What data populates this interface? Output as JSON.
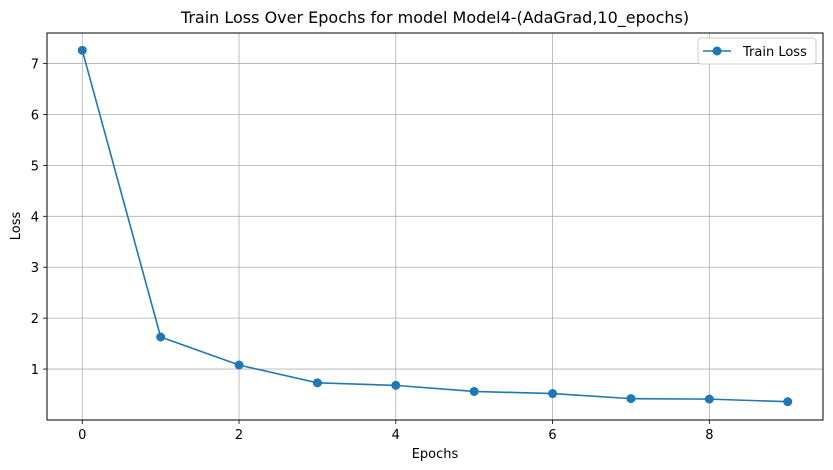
{
  "chart_data": {
    "type": "line",
    "title": "Train Loss Over Epochs for model Model4-(AdaGrad,10_epochs)",
    "xlabel": "Epochs",
    "ylabel": "Loss",
    "xlim": [
      -0.45,
      9.45
    ],
    "ylim": [
      0.0,
      7.6
    ],
    "xticks": [
      0,
      2,
      4,
      6,
      8
    ],
    "yticks": [
      1,
      2,
      3,
      4,
      5,
      6,
      7
    ],
    "grid": true,
    "legend_position": "top-right",
    "series": [
      {
        "name": "Train Loss",
        "color": "#1f77b4",
        "marker": "circle",
        "x": [
          0,
          1,
          2,
          3,
          4,
          5,
          6,
          7,
          8,
          9
        ],
        "y": [
          7.26,
          1.63,
          1.08,
          0.73,
          0.68,
          0.56,
          0.52,
          0.42,
          0.41,
          0.36
        ]
      }
    ]
  }
}
